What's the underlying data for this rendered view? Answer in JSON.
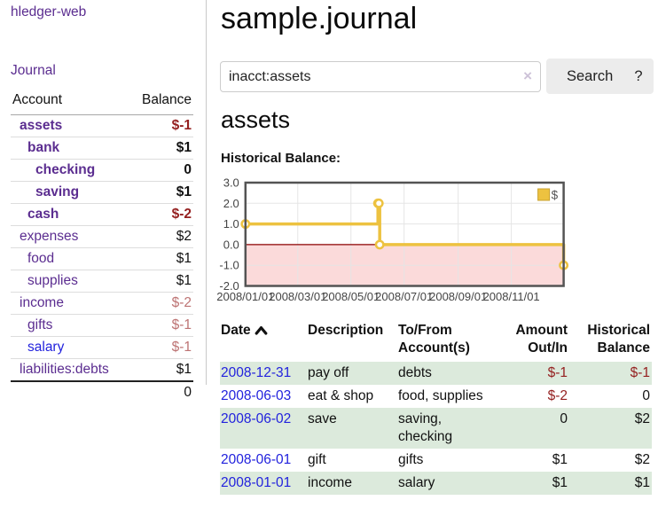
{
  "sidebar": {
    "app_title": "hledger-web",
    "journal_link": "Journal",
    "table": {
      "account_header": "Account",
      "balance_header": "Balance",
      "accounts": [
        {
          "name": "assets",
          "indent": 1,
          "bold": true,
          "balance": "$-1",
          "balance_style": "neg-strong"
        },
        {
          "name": "bank",
          "indent": 2,
          "bold": true,
          "balance": "$1",
          "balance_style": "pos"
        },
        {
          "name": "checking",
          "indent": 3,
          "bold": true,
          "balance": "0",
          "balance_style": "pos"
        },
        {
          "name": "saving",
          "indent": 3,
          "bold": true,
          "balance": "$1",
          "balance_style": "pos"
        },
        {
          "name": "cash",
          "indent": 2,
          "bold": true,
          "balance": "$-2",
          "balance_style": "neg-strong"
        },
        {
          "name": "expenses",
          "indent": 1,
          "bold": false,
          "balance": "$2",
          "balance_style": "pos"
        },
        {
          "name": "food",
          "indent": 2,
          "bold": false,
          "balance": "$1",
          "balance_style": "pos"
        },
        {
          "name": "supplies",
          "indent": 2,
          "bold": false,
          "balance": "$1",
          "balance_style": "pos"
        },
        {
          "name": "income",
          "indent": 1,
          "bold": false,
          "balance": "$-2",
          "balance_style": "neg"
        },
        {
          "name": "gifts",
          "indent": 2,
          "bold": false,
          "balance": "$-1",
          "balance_style": "neg"
        },
        {
          "name": "salary",
          "indent": 2,
          "bold": false,
          "balance": "$-1",
          "balance_style": "neg",
          "link_color": "blue"
        },
        {
          "name": "liabilities:debts",
          "indent": 1,
          "bold": false,
          "balance": "$1",
          "balance_style": "pos"
        }
      ],
      "total": "0"
    }
  },
  "header": {
    "title": "sample.journal"
  },
  "search": {
    "query": "inacct:assets",
    "clear_icon": "×",
    "search_button": "Search",
    "help_button": "?"
  },
  "account_page": {
    "heading": "assets",
    "chart_title": "Historical Balance:"
  },
  "chart_data": {
    "type": "line",
    "style": "step",
    "series": [
      {
        "name": "$",
        "color": "#edc240",
        "points": [
          [
            "2008-01-01",
            1
          ],
          [
            "2008-06-01",
            2
          ],
          [
            "2008-06-02",
            2
          ],
          [
            "2008-06-03",
            0
          ],
          [
            "2008-12-31",
            -1
          ]
        ]
      }
    ],
    "ylim": [
      -2,
      3
    ],
    "yticks": [
      3.0,
      2.0,
      1.0,
      0.0,
      -1.0,
      -2.0
    ],
    "xticks": [
      "2008/01/01",
      "2008/03/01",
      "2008/05/01",
      "2008/07/01",
      "2008/09/01",
      "2008/11/01"
    ],
    "xrange": [
      "2008-01-01",
      "2008-12-31"
    ],
    "grid": true,
    "legend": {
      "label": "$",
      "position": "top-right"
    },
    "zero_line_color": "#8b0000",
    "negative_region_fill": "#fbdada",
    "gridline_color": "#e5e5e5",
    "border_color": "#545454",
    "axis_text_color": "#444444"
  },
  "register": {
    "columns": {
      "date": "Date",
      "description": "Description",
      "accounts": "To/From Account(s)",
      "amount": "Amount Out/In",
      "balance": "Historical Balance"
    },
    "rows": [
      {
        "date": "2008-12-31",
        "description": "pay off",
        "accounts": "debts",
        "amount": "$-1",
        "amount_negative": true,
        "balance": "$-1",
        "balance_negative": true
      },
      {
        "date": "2008-06-03",
        "description": "eat & shop",
        "accounts": "food, supplies",
        "amount": "$-2",
        "amount_negative": true,
        "balance": "0",
        "balance_negative": false
      },
      {
        "date": "2008-06-02",
        "description": "save",
        "accounts": "saving, checking",
        "amount": "0",
        "amount_negative": false,
        "balance": "$2",
        "balance_negative": false
      },
      {
        "date": "2008-06-01",
        "description": "gift",
        "accounts": "gifts",
        "amount": "$1",
        "amount_negative": false,
        "balance": "$2",
        "balance_negative": false
      },
      {
        "date": "2008-01-01",
        "description": "income",
        "accounts": "salary",
        "amount": "$1",
        "amount_negative": false,
        "balance": "$1",
        "balance_negative": false
      }
    ]
  },
  "colors": {
    "link_purple": "#5b2d90",
    "link_blue": "#2222dd",
    "negative_strong": "#941f1f",
    "negative_muted": "#bd7373",
    "row_green": "#dceadc",
    "chart_yellow": "#edc240"
  }
}
